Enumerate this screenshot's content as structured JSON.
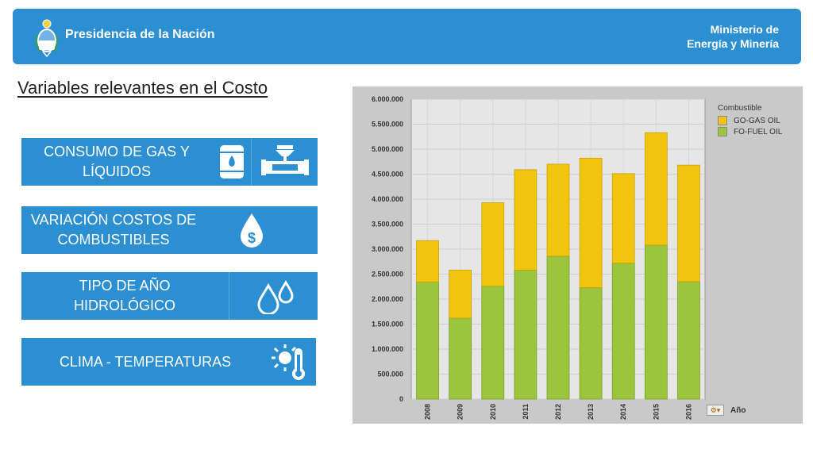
{
  "header": {
    "title": "Presidencia de la Nación",
    "ministry_line1": "Ministerio de",
    "ministry_line2": "Energía y Minería",
    "emblem_icon": "coat-of-arms-icon"
  },
  "page_title": "Variables relevantes en el Costo",
  "cards": [
    {
      "label": "CONSUMO DE GAS Y LÍQUIDOS",
      "icons": [
        "oil-barrel-icon",
        "pipeline-valve-icon"
      ]
    },
    {
      "label": "VARIACIÓN COSTOS DE COMBUSTIBLES",
      "icons": [
        "dollar-drop-icon"
      ]
    },
    {
      "label": "TIPO DE AÑO HIDROLÓGICO",
      "icons": [
        "water-drops-icon"
      ]
    },
    {
      "label": "CLIMA - TEMPERATURAS",
      "icons": [
        "sun-thermometer-icon"
      ]
    }
  ],
  "colors": {
    "brand_blue": "#2c8fd2",
    "go_gas_oil": "#f1c40f",
    "fo_fuel_oil": "#9bc53d"
  },
  "chart_controls": {
    "axis_button_label": "Año"
  },
  "chart_data": {
    "type": "bar",
    "stacked": true,
    "title": "",
    "xlabel": "Año",
    "ylabel": "",
    "legend_title": "Combustible",
    "legend_position": "top-right",
    "grid": true,
    "ylim": [
      0,
      6000000
    ],
    "yticks": [
      "0",
      "500.000",
      "1.000.000",
      "1.500.000",
      "2.000.000",
      "2.500.000",
      "3.000.000",
      "3.500.000",
      "4.000.000",
      "4.500.000",
      "5.000.000",
      "5.500.000",
      "6.000.000"
    ],
    "categories": [
      "2008",
      "2009",
      "2010",
      "2011",
      "2012",
      "2013",
      "2014",
      "2015",
      "2016"
    ],
    "series": [
      {
        "name": "FO-FUEL OIL",
        "color": "#9bc53d",
        "values": [
          2340000,
          1620000,
          2260000,
          2580000,
          2860000,
          2230000,
          2720000,
          3080000,
          2350000
        ]
      },
      {
        "name": "GO-GAS OIL",
        "color": "#f1c40f",
        "values": [
          830000,
          960000,
          1670000,
          2010000,
          1840000,
          2590000,
          1790000,
          2250000,
          2330000
        ]
      }
    ]
  }
}
